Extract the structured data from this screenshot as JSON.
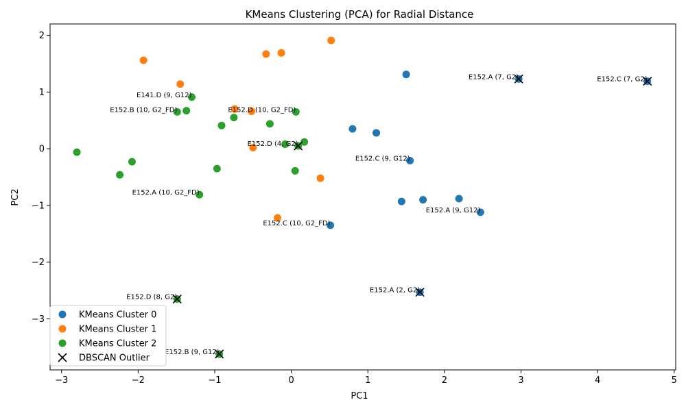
{
  "chart_data": {
    "type": "scatter",
    "title": "KMeans Clustering (PCA) for Radial Distance",
    "xlabel": "PC1",
    "ylabel": "PC2",
    "xlim": [
      -3.15,
      5.02
    ],
    "ylim": [
      -3.9,
      2.2
    ],
    "x_ticks": [
      -3,
      -2,
      -1,
      0,
      1,
      2,
      3,
      4,
      5
    ],
    "y_ticks": [
      -3,
      -2,
      -1,
      0,
      1,
      2
    ],
    "x_tick_labels": [
      "−3",
      "−2",
      "−1",
      "0",
      "1",
      "2",
      "3",
      "4",
      "5"
    ],
    "y_tick_labels": [
      "−3",
      "−2",
      "−1",
      "0",
      "1",
      "2"
    ],
    "grid": false,
    "legend_position": "lower-left",
    "series": [
      {
        "name": "KMeans Cluster 0",
        "color": "#1f77b4",
        "marker": "circle",
        "points": [
          [
            1.5,
            1.31
          ],
          [
            2.97,
            1.23
          ],
          [
            4.65,
            1.19
          ],
          [
            0.8,
            0.35
          ],
          [
            1.11,
            0.28
          ],
          [
            1.55,
            -0.21
          ],
          [
            1.44,
            -0.93
          ],
          [
            1.72,
            -0.9
          ],
          [
            2.19,
            -0.88
          ],
          [
            2.47,
            -1.12
          ],
          [
            0.51,
            -1.35
          ],
          [
            1.68,
            -2.53
          ]
        ]
      },
      {
        "name": "KMeans Cluster 1",
        "color": "#ff7f0e",
        "marker": "circle",
        "points": [
          [
            0.52,
            1.91
          ],
          [
            -0.33,
            1.67
          ],
          [
            -0.13,
            1.69
          ],
          [
            -1.93,
            1.56
          ],
          [
            -1.45,
            1.14
          ],
          [
            -0.74,
            0.7
          ],
          [
            -0.52,
            0.66
          ],
          [
            -0.5,
            0.02
          ],
          [
            0.38,
            -0.52
          ],
          [
            -0.18,
            -1.22
          ]
        ]
      },
      {
        "name": "KMeans Cluster 2",
        "color": "#2ca02c",
        "marker": "circle",
        "points": [
          [
            -1.3,
            0.91
          ],
          [
            -1.49,
            0.65
          ],
          [
            -1.37,
            0.67
          ],
          [
            -0.75,
            0.55
          ],
          [
            -0.91,
            0.41
          ],
          [
            -0.28,
            0.44
          ],
          [
            0.06,
            0.65
          ],
          [
            -0.08,
            0.08
          ],
          [
            0.09,
            0.05
          ],
          [
            0.17,
            0.12
          ],
          [
            -2.8,
            -0.06
          ],
          [
            -2.08,
            -0.23
          ],
          [
            -2.24,
            -0.46
          ],
          [
            -0.97,
            -0.35
          ],
          [
            0.05,
            -0.39
          ],
          [
            -1.2,
            -0.81
          ],
          [
            -1.49,
            -2.65
          ],
          [
            -0.94,
            -3.62
          ]
        ]
      },
      {
        "name": "DBSCAN Outlier",
        "color": "#000000",
        "marker": "x",
        "points": [
          [
            2.97,
            1.23
          ],
          [
            4.65,
            1.19
          ],
          [
            0.09,
            0.05
          ],
          [
            1.68,
            -2.53
          ],
          [
            -1.49,
            -2.65
          ],
          [
            -0.94,
            -3.62
          ]
        ]
      }
    ],
    "annotations": [
      {
        "text": "E152.A (7, G2)",
        "x": 2.97,
        "y": 1.23
      },
      {
        "text": "E152.C (7, G2)",
        "x": 4.65,
        "y": 1.19
      },
      {
        "text": "E141.D (9, G12)",
        "x": -1.3,
        "y": 0.91
      },
      {
        "text": "E152.B (10, G2_FD)",
        "x": -1.49,
        "y": 0.65
      },
      {
        "text": "E152.D (10, G2_FD)",
        "x": 0.06,
        "y": 0.65
      },
      {
        "text": "E152.D (4, G2)",
        "x": 0.09,
        "y": 0.05
      },
      {
        "text": "E152.C (9, G12)",
        "x": 1.55,
        "y": -0.21
      },
      {
        "text": "E152.A (10, G2_FD)",
        "x": -1.2,
        "y": -0.81
      },
      {
        "text": "E152.A (9, G12)",
        "x": 2.47,
        "y": -1.12
      },
      {
        "text": "E152.C (10, G2_FD)",
        "x": 0.51,
        "y": -1.35
      },
      {
        "text": "E152.A (2, G2)",
        "x": 1.68,
        "y": -2.53
      },
      {
        "text": "E152.D (8, G2)",
        "x": -1.49,
        "y": -2.65
      },
      {
        "text": "E152.B (9, G12)",
        "x": -0.94,
        "y": -3.62
      }
    ]
  }
}
